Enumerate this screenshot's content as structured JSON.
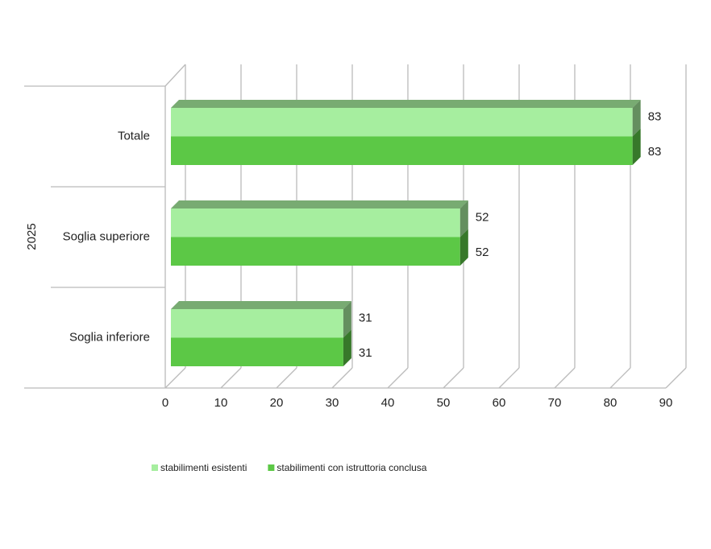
{
  "chart_data": {
    "type": "bar3d",
    "orientation": "horizontal",
    "group_label": "2025",
    "categories": [
      "Totale",
      "Soglia superiore",
      "Soglia inferiore"
    ],
    "series": [
      {
        "name": "stabilimenti esistenti",
        "color": "#a6ee9f",
        "values": [
          83,
          52,
          31
        ]
      },
      {
        "name": "stabilimenti con istruttoria conclusa",
        "color": "#5cc846",
        "values": [
          83,
          52,
          31
        ]
      }
    ],
    "xlim": [
      0,
      90
    ],
    "xticks": [
      0,
      10,
      20,
      30,
      40,
      50,
      60,
      70,
      80,
      90
    ],
    "grid": true,
    "legend": "bottom"
  }
}
